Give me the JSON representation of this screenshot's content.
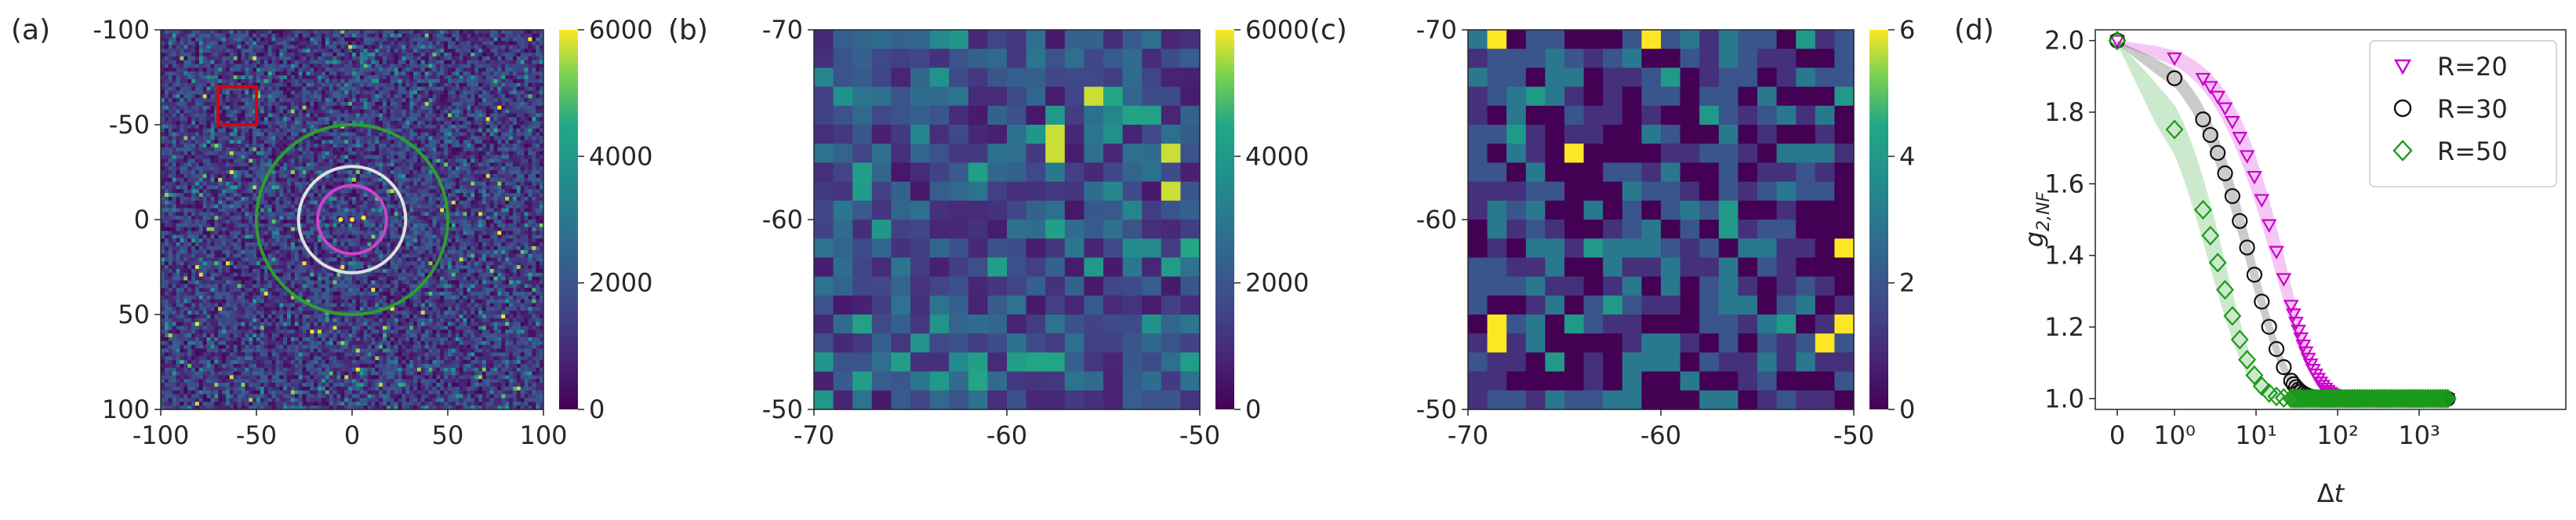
{
  "figure": {
    "panel_labels": [
      "(a)",
      "(b)",
      "(c)",
      "(d)"
    ]
  },
  "chart_data": [
    {
      "type": "heatmap",
      "panel": "(a)",
      "xticks": [
        "-100",
        "-50",
        "0",
        "50",
        "100"
      ],
      "yticks": [
        "-100",
        "-50",
        "0",
        "50",
        "100"
      ],
      "xlim": [
        -100,
        100
      ],
      "ylim": [
        -100,
        100
      ],
      "colorbar_ticks": [
        "0",
        "2000",
        "4000",
        "6000"
      ],
      "colorbar_range": [
        0,
        6000
      ],
      "colormap": "viridis",
      "overlays": {
        "rings": [
          {
            "color": "#2ca02c",
            "radius": 50
          },
          {
            "color": "#e0e0e0",
            "radius": 28
          },
          {
            "color": "#cc44cc",
            "radius": 18
          }
        ],
        "box": {
          "color": "#e00000",
          "x": [
            -70,
            -50
          ],
          "y": [
            -70,
            -50
          ]
        }
      }
    },
    {
      "type": "heatmap",
      "panel": "(b)",
      "xticks": [
        "-70",
        "-60",
        "-50"
      ],
      "yticks": [
        "-70",
        "-60",
        "-50"
      ],
      "xlim": [
        -70,
        -50
      ],
      "ylim": [
        -70,
        -50
      ],
      "grid_size": [
        20,
        20
      ],
      "colorbar_ticks": [
        "0",
        "2000",
        "4000",
        "6000"
      ],
      "colorbar_range": [
        0,
        6000
      ],
      "colormap": "viridis"
    },
    {
      "type": "heatmap",
      "panel": "(c)",
      "xticks": [
        "-70",
        "-60",
        "-50"
      ],
      "yticks": [
        "-70",
        "-60",
        "-50"
      ],
      "xlim": [
        -70,
        -50
      ],
      "ylim": [
        -70,
        -50
      ],
      "grid_size": [
        20,
        20
      ],
      "colorbar_ticks": [
        "0",
        "2",
        "4",
        "6"
      ],
      "colorbar_range": [
        0,
        6
      ],
      "colormap": "viridis"
    },
    {
      "type": "scatter",
      "panel": "(d)",
      "xlabel": "Δt",
      "ylabel": "g2,NF",
      "xscale": "symlog",
      "xticks": [
        "0",
        "10⁰",
        "10¹",
        "10²",
        "10³"
      ],
      "yticks": [
        "1.0",
        "1.2",
        "1.4",
        "1.6",
        "1.8",
        "2.0"
      ],
      "ylim": [
        0.97,
        2.03
      ],
      "legend_position": "top-right",
      "series": [
        {
          "name": "R=20",
          "marker": "triangle-down",
          "color": "#cc00cc",
          "tau": 40,
          "beta": 1.0,
          "band": 0.06
        },
        {
          "name": "R=30",
          "marker": "circle",
          "color": "#111111",
          "tau": 18,
          "beta": 1.0,
          "band": 0.04
        },
        {
          "name": "R=50",
          "marker": "diamond",
          "color": "#1a9a1a",
          "tau": 7,
          "beta": 1.0,
          "band": 0.08
        }
      ]
    }
  ]
}
